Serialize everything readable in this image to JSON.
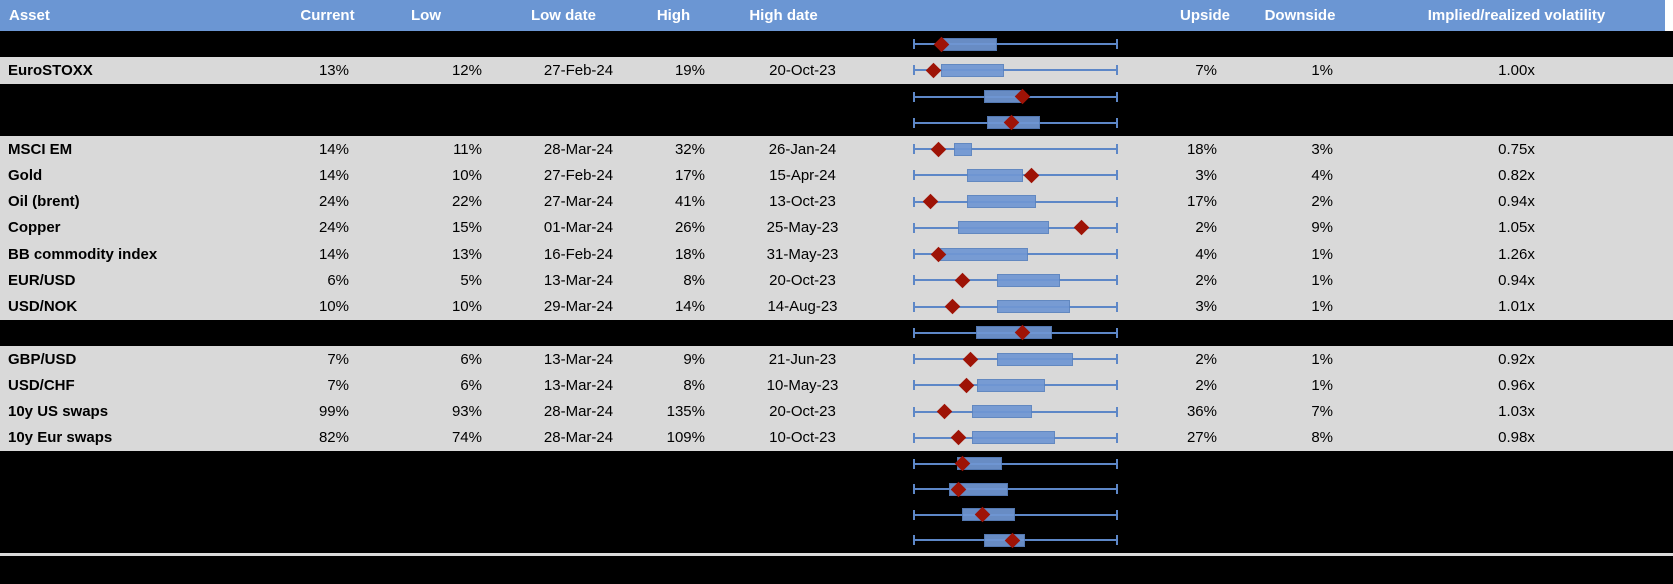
{
  "header": {
    "columns": [
      {
        "key": "asset",
        "label": "Asset"
      },
      {
        "key": "current",
        "label": "Current"
      },
      {
        "key": "low",
        "label": "Low"
      },
      {
        "key": "lowdate",
        "label": "Low date"
      },
      {
        "key": "high",
        "label": "High"
      },
      {
        "key": "highdate",
        "label": "High date"
      },
      {
        "key": "chart",
        "label": ""
      },
      {
        "key": "upside",
        "label": "Upside"
      },
      {
        "key": "downside",
        "label": "Downside"
      },
      {
        "key": "implied",
        "label": "Implied/realized volatility"
      }
    ]
  },
  "colors": {
    "header_bg": "#6b96d3",
    "header_text": "#ffffff",
    "row_bg": "#d9d9d9",
    "spacer_bg": "#000000",
    "box_fill": "#7097d3",
    "box_border": "#5a82bf",
    "whisker": "#5d87c7",
    "diamond": "#9e1306"
  },
  "rows": [
    {
      "type": "spacer",
      "box": {
        "s": 0.146,
        "e": 0.41,
        "d": 0.137
      }
    },
    {
      "type": "data",
      "asset": "EuroSTOXX",
      "current": "13%",
      "low": "12%",
      "low_date": "27-Feb-24",
      "high": "19%",
      "high_date": "20-Oct-23",
      "upside": "7%",
      "downside": "1%",
      "implied": "1.00x",
      "box": {
        "s": 0.137,
        "e": 0.444,
        "d": 0.098
      }
    },
    {
      "type": "spacer",
      "box": {
        "s": 0.346,
        "e": 0.537,
        "d": 0.532
      }
    },
    {
      "type": "spacer",
      "box": {
        "s": 0.361,
        "e": 0.62,
        "d": 0.478
      }
    },
    {
      "type": "data",
      "asset": "MSCI EM",
      "current": "14%",
      "low": "11%",
      "low_date": "28-Mar-24",
      "high": "32%",
      "high_date": "26-Jan-24",
      "upside": "18%",
      "downside": "3%",
      "implied": "0.75x",
      "box": {
        "s": 0.2,
        "e": 0.288,
        "d": 0.122
      }
    },
    {
      "type": "data",
      "asset": "Gold",
      "current": "14%",
      "low": "10%",
      "low_date": "27-Feb-24",
      "high": "17%",
      "high_date": "15-Apr-24",
      "upside": "3%",
      "downside": "4%",
      "implied": "0.82x",
      "box": {
        "s": 0.263,
        "e": 0.537,
        "d": 0.576
      }
    },
    {
      "type": "data",
      "asset": "Oil (brent)",
      "current": "24%",
      "low": "22%",
      "low_date": "27-Mar-24",
      "high": "41%",
      "high_date": "13-Oct-23",
      "upside": "17%",
      "downside": "2%",
      "implied": "0.94x",
      "box": {
        "s": 0.263,
        "e": 0.6,
        "d": 0.083
      }
    },
    {
      "type": "data",
      "asset": "Copper",
      "current": "24%",
      "low": "15%",
      "low_date": "01-Mar-24",
      "high": "26%",
      "high_date": "25-May-23",
      "upside": "2%",
      "downside": "9%",
      "implied": "1.05x",
      "box": {
        "s": 0.22,
        "e": 0.663,
        "d": 0.824
      }
    },
    {
      "type": "data",
      "asset": "BB commodity index",
      "current": "14%",
      "low": "13%",
      "low_date": "16-Feb-24",
      "high": "18%",
      "high_date": "31-May-23",
      "upside": "4%",
      "downside": "1%",
      "implied": "1.26x",
      "box": {
        "s": 0.117,
        "e": 0.561,
        "d": 0.122
      }
    },
    {
      "type": "data",
      "asset": "EUR/USD",
      "current": "6%",
      "low": "5%",
      "low_date": "13-Mar-24",
      "high": "8%",
      "high_date": "20-Oct-23",
      "upside": "2%",
      "downside": "1%",
      "implied": "0.94x",
      "box": {
        "s": 0.41,
        "e": 0.717,
        "d": 0.239
      }
    },
    {
      "type": "data",
      "asset": "USD/NOK",
      "current": "10%",
      "low": "10%",
      "low_date": "29-Mar-24",
      "high": "14%",
      "high_date": "14-Aug-23",
      "upside": "3%",
      "downside": "1%",
      "implied": "1.01x",
      "box": {
        "s": 0.41,
        "e": 0.766,
        "d": 0.19
      }
    },
    {
      "type": "spacer",
      "box": {
        "s": 0.307,
        "e": 0.678,
        "d": 0.532
      }
    },
    {
      "type": "data",
      "asset": "GBP/USD",
      "current": "7%",
      "low": "6%",
      "low_date": "13-Mar-24",
      "high": "9%",
      "high_date": "21-Jun-23",
      "upside": "2%",
      "downside": "1%",
      "implied": "0.92x",
      "box": {
        "s": 0.41,
        "e": 0.78,
        "d": 0.278
      }
    },
    {
      "type": "data",
      "asset": "USD/CHF",
      "current": "7%",
      "low": "6%",
      "low_date": "13-Mar-24",
      "high": "8%",
      "high_date": "10-May-23",
      "upside": "2%",
      "downside": "1%",
      "implied": "0.96x",
      "box": {
        "s": 0.312,
        "e": 0.644,
        "d": 0.259
      }
    },
    {
      "type": "data",
      "asset": "10y US swaps",
      "current": "99%",
      "low": "93%",
      "low_date": "28-Mar-24",
      "high": "135%",
      "high_date": "20-Oct-23",
      "upside": "36%",
      "downside": "7%",
      "implied": "1.03x",
      "box": {
        "s": 0.288,
        "e": 0.58,
        "d": 0.151
      }
    },
    {
      "type": "data",
      "asset": "10y Eur swaps",
      "current": "82%",
      "low": "74%",
      "low_date": "28-Mar-24",
      "high": "109%",
      "high_date": "10-Oct-23",
      "upside": "27%",
      "downside": "8%",
      "implied": "0.98x",
      "box": {
        "s": 0.288,
        "e": 0.693,
        "d": 0.224
      }
    },
    {
      "type": "spacer",
      "short": true,
      "box": {
        "s": 0.215,
        "e": 0.434,
        "d": 0.239
      }
    },
    {
      "type": "spacer",
      "short": true,
      "box": {
        "s": 0.176,
        "e": 0.463,
        "d": 0.224
      }
    },
    {
      "type": "spacer",
      "short": true,
      "box": {
        "s": 0.239,
        "e": 0.498,
        "d": 0.341
      }
    },
    {
      "type": "spacer",
      "short": true,
      "box": {
        "s": 0.346,
        "e": 0.546,
        "d": 0.483
      }
    }
  ],
  "chart_data": {
    "type": "boxplot",
    "note": "One horizontal box-whisker per row; all whiskers span the full common axis (normalized 0-1, no axis labels shown). s/e = box start/end, d = red diamond marker position.",
    "whisker_span": [
      0,
      1
    ],
    "series": [
      {
        "label": "",
        "s": 0.146,
        "e": 0.41,
        "d": 0.137
      },
      {
        "label": "EuroSTOXX",
        "s": 0.137,
        "e": 0.444,
        "d": 0.098
      },
      {
        "label": "",
        "s": 0.346,
        "e": 0.537,
        "d": 0.532
      },
      {
        "label": "",
        "s": 0.361,
        "e": 0.62,
        "d": 0.478
      },
      {
        "label": "MSCI EM",
        "s": 0.2,
        "e": 0.288,
        "d": 0.122
      },
      {
        "label": "Gold",
        "s": 0.263,
        "e": 0.537,
        "d": 0.576
      },
      {
        "label": "Oil (brent)",
        "s": 0.263,
        "e": 0.6,
        "d": 0.083
      },
      {
        "label": "Copper",
        "s": 0.22,
        "e": 0.663,
        "d": 0.824
      },
      {
        "label": "BB commodity index",
        "s": 0.117,
        "e": 0.561,
        "d": 0.122
      },
      {
        "label": "EUR/USD",
        "s": 0.41,
        "e": 0.717,
        "d": 0.239
      },
      {
        "label": "USD/NOK",
        "s": 0.41,
        "e": 0.766,
        "d": 0.19
      },
      {
        "label": "",
        "s": 0.307,
        "e": 0.678,
        "d": 0.532
      },
      {
        "label": "GBP/USD",
        "s": 0.41,
        "e": 0.78,
        "d": 0.278
      },
      {
        "label": "USD/CHF",
        "s": 0.312,
        "e": 0.644,
        "d": 0.259
      },
      {
        "label": "10y US swaps",
        "s": 0.288,
        "e": 0.58,
        "d": 0.151
      },
      {
        "label": "10y Eur swaps",
        "s": 0.288,
        "e": 0.693,
        "d": 0.224
      },
      {
        "label": "",
        "s": 0.215,
        "e": 0.434,
        "d": 0.239
      },
      {
        "label": "",
        "s": 0.176,
        "e": 0.463,
        "d": 0.224
      },
      {
        "label": "",
        "s": 0.239,
        "e": 0.498,
        "d": 0.341
      },
      {
        "label": "",
        "s": 0.346,
        "e": 0.546,
        "d": 0.483
      }
    ]
  }
}
